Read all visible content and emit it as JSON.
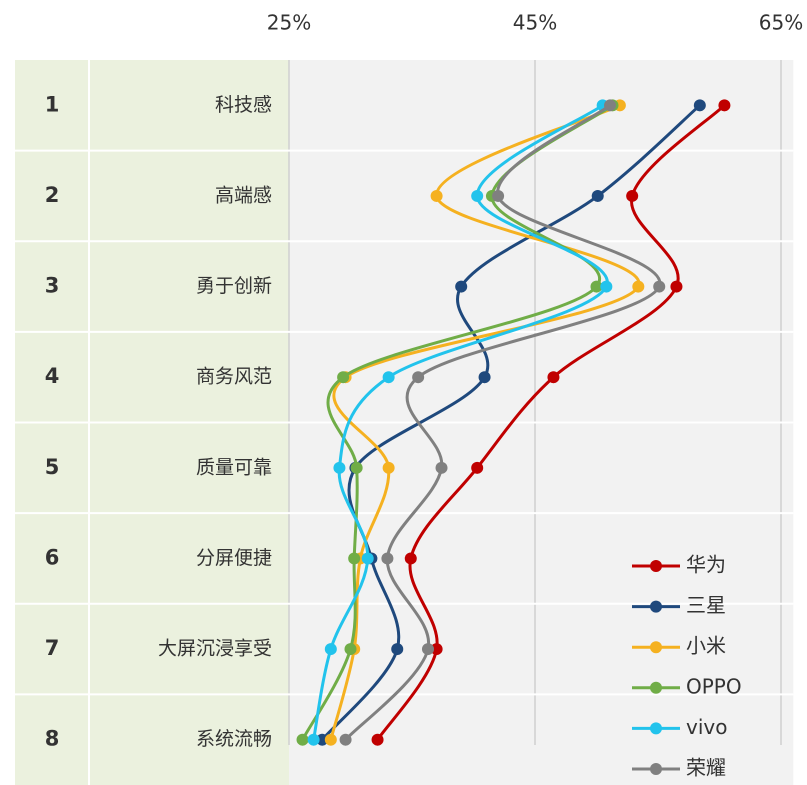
{
  "chart_data": {
    "type": "line",
    "ranks": [
      "1",
      "2",
      "3",
      "4",
      "5",
      "6",
      "7",
      "8"
    ],
    "categories": [
      "科技感",
      "高端感",
      "勇于创新",
      "商务风范",
      "质量可靠",
      "分屏便捷",
      "大屏沉浸享受",
      "系统流畅"
    ],
    "xlim": [
      25,
      66
    ],
    "xticks": [
      {
        "value": 25,
        "label": "25%"
      },
      {
        "value": 45,
        "label": "45%"
      },
      {
        "value": 65,
        "label": "65%"
      }
    ],
    "grid": true,
    "legend": "lower right",
    "series": [
      {
        "name": "华为",
        "color": "#c00000",
        "values": [
          60.4,
          52.9,
          56.5,
          46.5,
          40.3,
          34.9,
          37.0,
          32.2
        ]
      },
      {
        "name": "三星",
        "color": "#1f497d",
        "values": [
          58.4,
          50.1,
          39.0,
          40.9,
          30.4,
          31.7,
          33.8,
          27.7
        ]
      },
      {
        "name": "小米",
        "color": "#f5b120",
        "values": [
          51.9,
          37.0,
          53.4,
          29.6,
          33.1,
          30.8,
          30.3,
          28.4
        ]
      },
      {
        "name": "OPPO",
        "color": "#70ad47",
        "values": [
          51.3,
          41.5,
          50.0,
          29.4,
          30.5,
          30.3,
          30.0,
          26.1
        ]
      },
      {
        "name": "vivo",
        "color": "#22c3ec",
        "values": [
          50.5,
          40.3,
          50.8,
          33.1,
          29.1,
          31.4,
          28.4,
          27.0
        ]
      },
      {
        "name": "荣耀",
        "color": "#808080",
        "values": [
          51.1,
          42.0,
          55.1,
          35.5,
          37.4,
          33.0,
          36.3,
          29.6
        ]
      }
    ]
  }
}
